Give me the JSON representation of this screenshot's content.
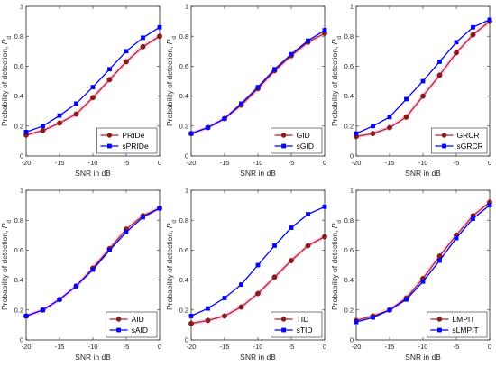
{
  "colors": {
    "series_a_line": "#a52a2a",
    "series_a_marker": "#8b1a1a",
    "series_a_glow": "#ff66cc",
    "series_b_line": "#0000ff",
    "series_b_marker": "#0000ff",
    "axis": "#262626",
    "background": "#ffffff"
  },
  "layout": {
    "grid": "2x3",
    "legend_location": "bottom-right",
    "marker_a": "circle",
    "marker_b": "square"
  },
  "chart_data": [
    {
      "type": "line",
      "xlabel": "SNR in dB",
      "ylabel": "Probability of detection, ",
      "ylabel_symbol": "P",
      "ylabel_subscript": "d",
      "x": [
        -20,
        -17.5,
        -15,
        -12.5,
        -10,
        -7.5,
        -5,
        -2.5,
        0
      ],
      "xlim": [
        -20,
        0
      ],
      "ylim": [
        0,
        1
      ],
      "xticks": [
        "-20",
        "-15",
        "-10",
        "-5",
        "0"
      ],
      "yticks": [
        "0",
        "0.2",
        "0.4",
        "0.6",
        "0.8",
        "1"
      ],
      "series": [
        {
          "name": "PRIDe",
          "values": [
            0.14,
            0.17,
            0.22,
            0.28,
            0.39,
            0.51,
            0.63,
            0.73,
            0.8
          ]
        },
        {
          "name": "sPRIDe",
          "values": [
            0.16,
            0.2,
            0.27,
            0.35,
            0.46,
            0.58,
            0.7,
            0.79,
            0.86
          ]
        }
      ]
    },
    {
      "type": "line",
      "xlabel": "SNR in dB",
      "ylabel": "Probability of detection, ",
      "ylabel_symbol": "P",
      "ylabel_subscript": "d",
      "x": [
        -20,
        -17.5,
        -15,
        -12.5,
        -10,
        -7.5,
        -5,
        -2.5,
        0
      ],
      "xlim": [
        -20,
        0
      ],
      "ylim": [
        0,
        1
      ],
      "xticks": [
        "-20",
        "-15",
        "-10",
        "-5",
        "0"
      ],
      "yticks": [
        "0",
        "0.2",
        "0.4",
        "0.6",
        "0.8",
        "1"
      ],
      "series": [
        {
          "name": "GID",
          "values": [
            0.15,
            0.19,
            0.25,
            0.34,
            0.45,
            0.57,
            0.67,
            0.76,
            0.82
          ]
        },
        {
          "name": "sGID",
          "values": [
            0.15,
            0.19,
            0.25,
            0.35,
            0.46,
            0.58,
            0.68,
            0.77,
            0.84
          ]
        }
      ]
    },
    {
      "type": "line",
      "xlabel": "SNR in dB",
      "ylabel": "Probability of detection, ",
      "ylabel_symbol": "P",
      "ylabel_subscript": "d",
      "x": [
        -20,
        -17.5,
        -15,
        -12.5,
        -10,
        -7.5,
        -5,
        -2.5,
        0
      ],
      "xlim": [
        -20,
        0
      ],
      "ylim": [
        0,
        1
      ],
      "xticks": [
        "-20",
        "-15",
        "-10",
        "-5",
        "0"
      ],
      "yticks": [
        "0",
        "0.2",
        "0.4",
        "0.6",
        "0.8",
        "1"
      ],
      "series": [
        {
          "name": "GRCR",
          "values": [
            0.13,
            0.15,
            0.19,
            0.26,
            0.4,
            0.54,
            0.69,
            0.81,
            0.9
          ]
        },
        {
          "name": "sGRCR",
          "values": [
            0.15,
            0.2,
            0.26,
            0.38,
            0.5,
            0.63,
            0.76,
            0.86,
            0.91
          ]
        }
      ]
    },
    {
      "type": "line",
      "xlabel": "SNR in dB",
      "ylabel": "Probability of detection, ",
      "ylabel_symbol": "P",
      "ylabel_subscript": "d",
      "x": [
        -20,
        -17.5,
        -15,
        -12.5,
        -10,
        -7.5,
        -5,
        -2.5,
        0
      ],
      "xlim": [
        -20,
        0
      ],
      "ylim": [
        0,
        1
      ],
      "xticks": [
        "-20",
        "-15",
        "-10",
        "-5",
        "0"
      ],
      "yticks": [
        "0",
        "0.2",
        "0.4",
        "0.6",
        "0.8",
        "1"
      ],
      "series": [
        {
          "name": "AID",
          "values": [
            0.16,
            0.2,
            0.27,
            0.36,
            0.48,
            0.61,
            0.74,
            0.83,
            0.88
          ]
        },
        {
          "name": "sAID",
          "values": [
            0.16,
            0.2,
            0.27,
            0.36,
            0.47,
            0.6,
            0.72,
            0.82,
            0.88
          ]
        }
      ]
    },
    {
      "type": "line",
      "xlabel": "SNR in dB",
      "ylabel": "Probability of detection, ",
      "ylabel_symbol": "P",
      "ylabel_subscript": "d",
      "x": [
        -20,
        -17.5,
        -15,
        -12.5,
        -10,
        -7.5,
        -5,
        -2.5,
        0
      ],
      "xlim": [
        -20,
        0
      ],
      "ylim": [
        0,
        1
      ],
      "xticks": [
        "-20",
        "-15",
        "-10",
        "-5",
        "0"
      ],
      "yticks": [
        "0",
        "0.2",
        "0.4",
        "0.6",
        "0.8",
        "1"
      ],
      "series": [
        {
          "name": "TID",
          "values": [
            0.11,
            0.13,
            0.16,
            0.22,
            0.31,
            0.42,
            0.53,
            0.63,
            0.69
          ]
        },
        {
          "name": "sTID",
          "values": [
            0.16,
            0.21,
            0.28,
            0.37,
            0.5,
            0.63,
            0.75,
            0.84,
            0.89
          ]
        }
      ]
    },
    {
      "type": "line",
      "xlabel": "SNR in dB",
      "ylabel": "Probability of detection, ",
      "ylabel_symbol": "P",
      "ylabel_subscript": "d",
      "x": [
        -20,
        -17.5,
        -15,
        -12.5,
        -10,
        -7.5,
        -5,
        -2.5,
        0
      ],
      "xlim": [
        -20,
        0
      ],
      "ylim": [
        0,
        1
      ],
      "xticks": [
        "-20",
        "-15",
        "-10",
        "-5",
        "0"
      ],
      "yticks": [
        "0",
        "0.2",
        "0.4",
        "0.6",
        "0.8",
        "1"
      ],
      "series": [
        {
          "name": "LMPIT",
          "values": [
            0.13,
            0.16,
            0.2,
            0.28,
            0.41,
            0.56,
            0.7,
            0.83,
            0.92
          ]
        },
        {
          "name": "sLMPIT",
          "values": [
            0.12,
            0.15,
            0.2,
            0.27,
            0.39,
            0.53,
            0.68,
            0.81,
            0.9
          ]
        }
      ]
    }
  ]
}
